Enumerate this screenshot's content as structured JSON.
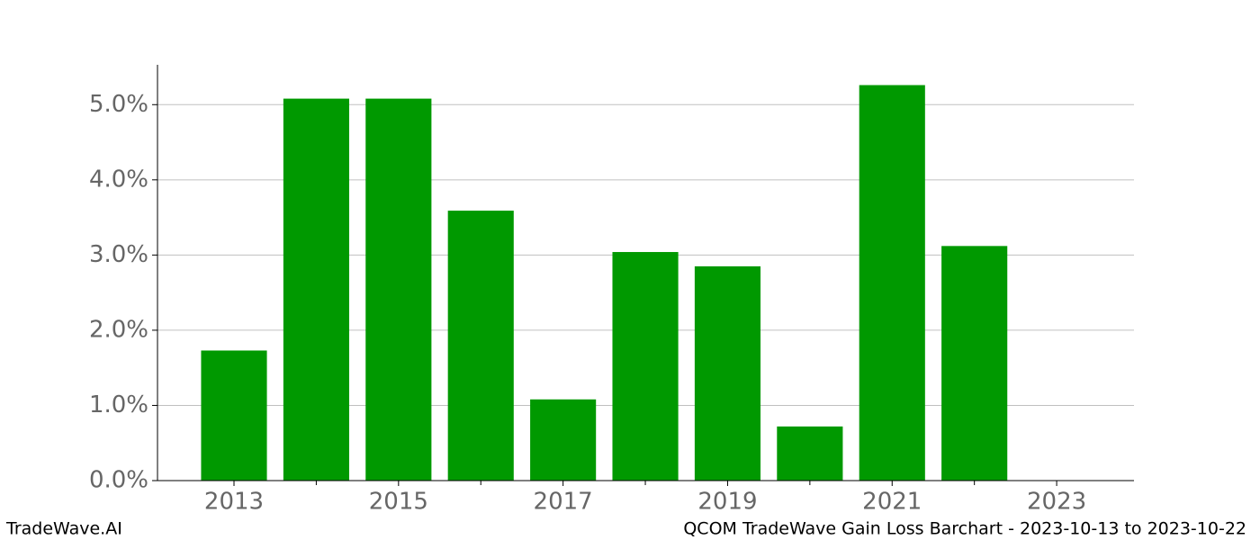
{
  "chart_data": {
    "type": "bar",
    "title": "QCOM TradeWave Gain Loss Barchart - 2023-10-13 to 2023-10-22",
    "watermark": "TradeWave.AI",
    "x": [
      2013,
      2014,
      2015,
      2016,
      2017,
      2018,
      2019,
      2020,
      2021,
      2022
    ],
    "values": [
      1.73,
      5.08,
      5.08,
      3.59,
      1.08,
      3.04,
      2.85,
      0.72,
      5.26,
      3.12
    ],
    "color": "#009900",
    "bar_width": 0.8,
    "xlim": [
      2012.07,
      2023.94
    ],
    "xticks": [
      2013,
      2015,
      2017,
      2019,
      2021,
      2023
    ],
    "xminorticks": [
      2014,
      2016,
      2018,
      2020,
      2022
    ],
    "ylim": [
      0,
      5.53
    ],
    "yticks": [
      {
        "value": 0,
        "label": "0.0%"
      },
      {
        "value": 1,
        "label": "1.0%"
      },
      {
        "value": 2,
        "label": "2.0%"
      },
      {
        "value": 3,
        "label": "3.0%"
      },
      {
        "value": 4,
        "label": "4.0%"
      },
      {
        "value": 5,
        "label": "5.0%"
      }
    ],
    "grid": true
  }
}
